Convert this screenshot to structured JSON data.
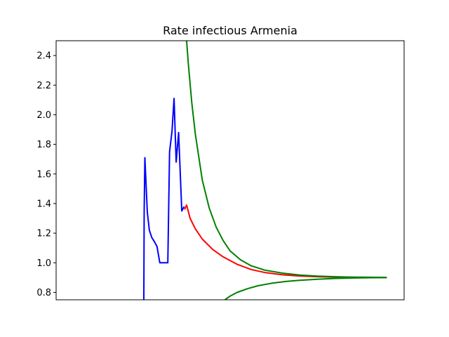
{
  "chart_data": {
    "type": "line",
    "title": "Rate infectious Armenia",
    "xlabel": "",
    "ylabel": "",
    "xlim": [
      0,
      100
    ],
    "ylim": [
      0.75,
      2.5
    ],
    "y_ticks": [
      "0.8",
      "1.0",
      "1.2",
      "1.4",
      "1.6",
      "1.8",
      "2.0",
      "2.2",
      "2.4"
    ],
    "x_ticks_visible": false,
    "grid": false,
    "series": [
      {
        "color": "#0000ff",
        "points": [
          [
            25.2,
            0.75
          ],
          [
            25.3,
            1.35
          ],
          [
            25.5,
            1.71
          ],
          [
            26.2,
            1.34
          ],
          [
            26.8,
            1.22
          ],
          [
            27.5,
            1.17
          ],
          [
            28.3,
            1.14
          ],
          [
            29.0,
            1.11
          ],
          [
            29.8,
            1.0
          ],
          [
            31.3,
            1.0
          ],
          [
            32.1,
            1.0
          ],
          [
            32.6,
            1.75
          ],
          [
            33.3,
            1.89
          ],
          [
            33.9,
            2.11
          ],
          [
            34.5,
            1.68
          ],
          [
            35.2,
            1.88
          ],
          [
            36.1,
            1.35
          ],
          [
            36.8,
            1.38
          ]
        ]
      },
      {
        "color": "#ff0000",
        "points": [
          [
            36.9,
            1.36
          ],
          [
            37.5,
            1.39
          ],
          [
            38.5,
            1.3
          ],
          [
            40,
            1.23
          ],
          [
            42,
            1.16
          ],
          [
            45,
            1.09
          ],
          [
            48,
            1.04
          ],
          [
            52,
            0.99
          ],
          [
            56,
            0.955
          ],
          [
            60,
            0.934
          ],
          [
            65,
            0.919
          ],
          [
            70,
            0.911
          ],
          [
            75,
            0.906
          ],
          [
            80,
            0.903
          ],
          [
            85,
            0.902
          ],
          [
            90,
            0.901
          ],
          [
            95,
            0.9
          ]
        ]
      },
      {
        "color": "#008000",
        "points": [
          [
            37.5,
            2.5
          ],
          [
            38,
            2.34
          ],
          [
            39,
            2.08
          ],
          [
            40,
            1.87
          ],
          [
            42,
            1.56
          ],
          [
            44,
            1.37
          ],
          [
            46,
            1.24
          ],
          [
            48,
            1.15
          ],
          [
            50,
            1.08
          ],
          [
            53,
            1.02
          ],
          [
            56,
            0.98
          ],
          [
            60,
            0.95
          ],
          [
            65,
            0.93
          ],
          [
            70,
            0.917
          ],
          [
            75,
            0.91
          ],
          [
            80,
            0.906
          ],
          [
            85,
            0.903
          ],
          [
            90,
            0.902
          ],
          [
            95,
            0.901
          ]
        ]
      },
      {
        "color": "#008000",
        "points": [
          [
            48.5,
            0.75
          ],
          [
            50,
            0.775
          ],
          [
            52,
            0.8
          ],
          [
            55,
            0.825
          ],
          [
            58,
            0.845
          ],
          [
            62,
            0.862
          ],
          [
            66,
            0.874
          ],
          [
            70,
            0.882
          ],
          [
            75,
            0.889
          ],
          [
            80,
            0.894
          ],
          [
            85,
            0.897
          ],
          [
            90,
            0.899
          ],
          [
            95,
            0.9
          ]
        ]
      }
    ]
  }
}
